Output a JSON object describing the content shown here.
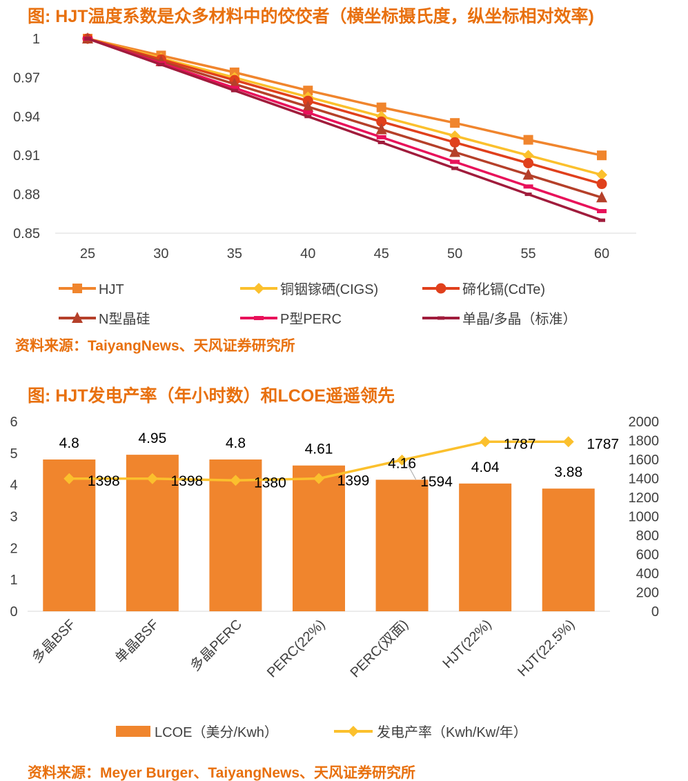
{
  "chart_data": [
    {
      "type": "line",
      "title": "图: HJT温度系数是众多材料中的佼佼者（横坐标摄氏度，纵坐标相对效率)",
      "source": "资料来源：TaiyangNews、天风证券研究所",
      "x": [
        25,
        30,
        35,
        40,
        45,
        50,
        55,
        60
      ],
      "x_tick_labels": [
        "25",
        "30",
        "35",
        "40",
        "45",
        "50",
        "55",
        "60"
      ],
      "y_tick_labels": [
        "1",
        "0.97",
        "0.94",
        "0.91",
        "0.88",
        "0.85"
      ],
      "ylim": [
        0.85,
        1.0
      ],
      "xlabel": "",
      "ylabel": "",
      "legend": "bottom",
      "series": [
        {
          "name": "HJT",
          "color": "#f0852d",
          "marker": "square",
          "values": [
            1.0,
            0.987,
            0.974,
            0.96,
            0.947,
            0.935,
            0.922,
            0.91
          ]
        },
        {
          "name": "铜铟镓硒(CIGS)",
          "color": "#fbc02d",
          "marker": "diamond",
          "values": [
            1.0,
            0.985,
            0.97,
            0.955,
            0.94,
            0.925,
            0.91,
            0.895
          ]
        },
        {
          "name": "碲化镉(CdTe)",
          "color": "#e0401c",
          "marker": "circle",
          "values": [
            1.0,
            0.984,
            0.968,
            0.952,
            0.936,
            0.92,
            0.904,
            0.888
          ]
        },
        {
          "name": "N型晶硅",
          "color": "#b5402a",
          "marker": "triangle",
          "values": [
            1.0,
            0.9825,
            0.965,
            0.9475,
            0.93,
            0.9125,
            0.895,
            0.8775
          ]
        },
        {
          "name": "P型PERC",
          "color": "#e8115a",
          "marker": "dash",
          "values": [
            1.0,
            0.981,
            0.962,
            0.943,
            0.924,
            0.905,
            0.886,
            0.867
          ]
        },
        {
          "name": "单晶/多晶（标准）",
          "color": "#a01c3c",
          "marker": "smalldash",
          "values": [
            1.0,
            0.98,
            0.96,
            0.94,
            0.92,
            0.9,
            0.88,
            0.86
          ]
        }
      ]
    },
    {
      "type": "bar",
      "title": "图: HJT发电产率（年小时数）和LCOE遥遥领先",
      "source": "资料来源：Meyer Burger、TaiyangNews、天风证券研究所",
      "categories": [
        "多晶BSF",
        "单晶BSF",
        "多晶PERC",
        "PERC(22%)",
        "PERC(双面)",
        "HJT(22%)",
        "HJT(22.5%)"
      ],
      "y_tick_labels": [
        "0",
        "1",
        "2",
        "3",
        "4",
        "5",
        "6"
      ],
      "y2_tick_labels": [
        "0",
        "200",
        "400",
        "600",
        "800",
        "1000",
        "1200",
        "1400",
        "1600",
        "1800",
        "2000"
      ],
      "ylim": [
        0,
        6
      ],
      "y2lim": [
        0,
        2000
      ],
      "legend": "bottom",
      "series": [
        {
          "name": "LCOE（美分/Kwh）",
          "type": "bar",
          "color": "#f0852d",
          "values": [
            4.8,
            4.95,
            4.8,
            4.61,
            4.16,
            4.04,
            3.88
          ],
          "labels": [
            "4.8",
            "4.95",
            "4.8",
            "4.61",
            "4.16",
            "4.04",
            "3.88"
          ]
        },
        {
          "name": "发电产率（Kwh/Kw/年）",
          "type": "line",
          "axis": "right",
          "color": "#fbc02d",
          "values": [
            1398,
            1398,
            1380,
            1399,
            1594,
            1787,
            1787
          ],
          "labels": [
            "1398",
            "1398",
            "1380",
            "1399",
            "1594",
            "1787",
            "1787"
          ]
        }
      ]
    }
  ]
}
